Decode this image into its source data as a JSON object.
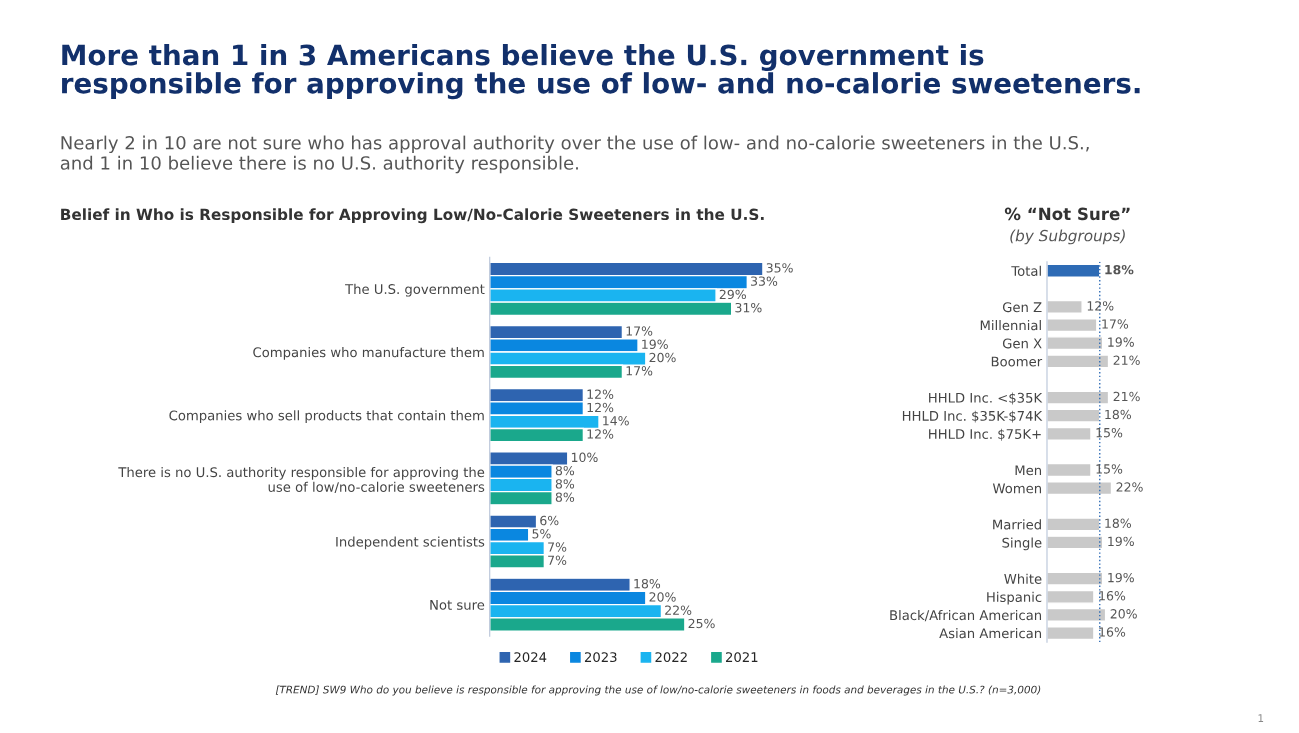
{
  "chart_data": [
    {
      "type": "bar",
      "orientation": "horizontal",
      "title": "Belief in Who is Responsible for Approving Low/No-Calorie Sweeteners in the U.S.",
      "categories": [
        "The U.S. government",
        "Companies who manufacture them",
        "Companies who sell products that contain them",
        "There is no U.S. authority responsible for approving the\nuse of low/no-calorie sweeteners",
        "Independent scientists",
        "Not sure"
      ],
      "series": [
        {
          "name": "2024",
          "color": "#2e64b0",
          "values": [
            35,
            17,
            12,
            10,
            6,
            18
          ],
          "value_labels": [
            "35%",
            "17%",
            "12%",
            "10%",
            "6%",
            "18%"
          ]
        },
        {
          "name": "2023",
          "color": "#0a87e0",
          "values": [
            33,
            19,
            12,
            8,
            5,
            20
          ],
          "value_labels": [
            "33%",
            "19%",
            "12%",
            "8%",
            "5%",
            "20%"
          ]
        },
        {
          "name": "2022",
          "color": "#1ab4f0",
          "values": [
            29,
            20,
            14,
            8,
            7,
            22
          ],
          "value_labels": [
            "29%",
            "20%",
            "14%",
            "8%",
            "7%",
            "22%"
          ]
        },
        {
          "name": "2021",
          "color": "#1aa88c",
          "values": [
            31,
            17,
            12,
            8,
            7,
            25
          ],
          "value_labels": [
            "31%",
            "17%",
            "12%",
            "8%",
            "7%",
            "25%"
          ]
        }
      ],
      "legend": "bottom",
      "tick_labels": "y",
      "grid": false,
      "annotations": [
        "More than 1 in 3 Americans believe the U.S. government is\nresponsible for approving the use of low- and no-calorie sweeteners.",
        "Nearly 2 in 10 are not sure who has approval authority over the use of low- and no-calorie sweeteners in the U.S.,\nand 1 in 10 believe there is no U.S. authority responsible.",
        "[TREND] SW9 Who do you believe is responsible for approving the use of low/no-calorie sweeteners in foods and beverages in the U.S.? (n=3,000)",
        "1"
      ]
    },
    {
      "type": "bar",
      "orientation": "horizontal",
      "title": "% “Not Sure”",
      "subtitle": "(by Subgroups)",
      "categories": [
        "Total",
        null,
        "Gen Z",
        "Millennial",
        "Gen X",
        "Boomer",
        null,
        "HHLD Inc. <$35K",
        "HHLD Inc. $35K-$74K",
        "HHLD Inc. $75K+",
        null,
        "Men",
        "Women",
        null,
        "Married",
        "Single",
        null,
        "White",
        "Hispanic",
        "Black/African American",
        "Asian American"
      ],
      "values": [
        18,
        null,
        12,
        17,
        19,
        21,
        null,
        21,
        18,
        15,
        null,
        15,
        22,
        null,
        18,
        19,
        null,
        19,
        16,
        20,
        16
      ],
      "value_labels": [
        "18%",
        null,
        "12%",
        "17%",
        "19%",
        "21%",
        null,
        "21%",
        "18%",
        "15%",
        null,
        "15%",
        "22%",
        null,
        "18%",
        "19%",
        null,
        "19%",
        "16%",
        "20%",
        "16%"
      ],
      "colors": [
        "#2e6bb5",
        null,
        "#c9c9c9",
        "#c9c9c9",
        "#c9c9c9",
        "#c9c9c9",
        null,
        "#c9c9c9",
        "#c9c9c9",
        "#c9c9c9",
        null,
        "#c9c9c9",
        "#c9c9c9",
        null,
        "#c9c9c9",
        "#c9c9c9",
        null,
        "#c9c9c9",
        "#c9c9c9",
        "#c9c9c9",
        "#c9c9c9"
      ],
      "tick_labels": "y",
      "grid": false,
      "legend": false,
      "ref_lines": [
        {
          "axis": "x",
          "value": 18,
          "label": null,
          "color": "#2e6bb5",
          "line_style": "dotted"
        }
      ]
    }
  ]
}
